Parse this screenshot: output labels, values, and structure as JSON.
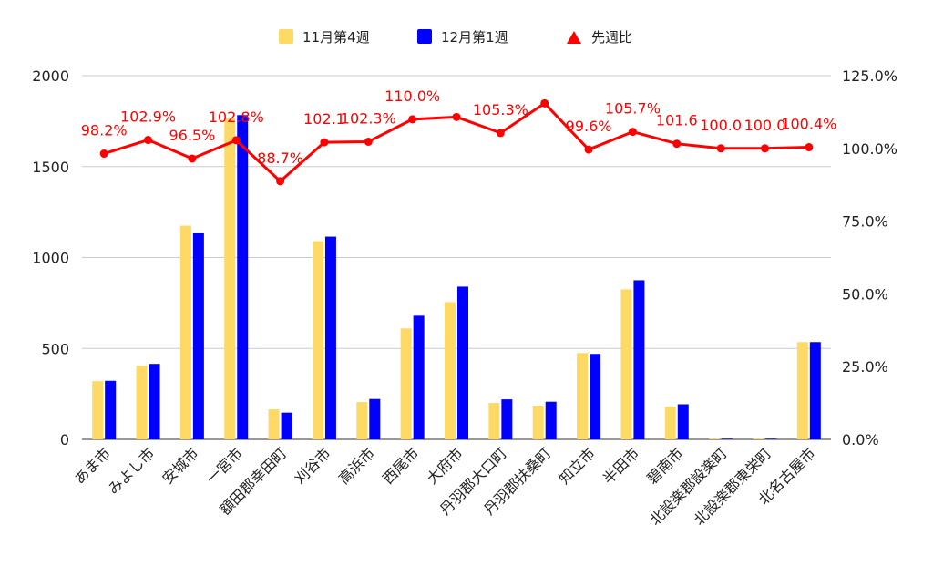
{
  "chart_data": {
    "type": "bar",
    "categories": [
      "あま市",
      "みよし市",
      "安城市",
      "一宮市",
      "額田郡幸田町",
      "刈谷市",
      "高浜市",
      "西尾市",
      "大府市",
      "丹羽郡大口町",
      "丹羽郡扶桑町",
      "知立市",
      "半田市",
      "碧南市",
      "北設楽郡設楽町",
      "北設楽郡東栄町",
      "北名古屋市"
    ],
    "series": [
      {
        "name": "11月第4週",
        "color": "#ffd966",
        "type": "bar",
        "axis": "left",
        "values": [
          320,
          405,
          1175,
          1765,
          165,
          1090,
          205,
          610,
          755,
          200,
          185,
          475,
          825,
          180,
          5,
          5,
          535
        ]
      },
      {
        "name": "12月第1週",
        "color": "#0000ff",
        "type": "bar",
        "axis": "left",
        "values": [
          322,
          415,
          1133,
          1783,
          147,
          1115,
          222,
          680,
          840,
          220,
          207,
          470,
          875,
          193,
          4,
          4,
          535
        ]
      },
      {
        "name": "先週比",
        "color": "#ff0000",
        "type": "line",
        "axis": "right",
        "marker": "triangle",
        "values": [
          98.2,
          102.9,
          96.5,
          102.8,
          88.7,
          102.1,
          102.3,
          110.0,
          110.8,
          105.3,
          115.5,
          99.6,
          105.7,
          101.6,
          100.0,
          100.0,
          100.4
        ]
      }
    ],
    "data_labels": [
      "98.2%",
      "102.9%",
      "96.5%",
      "102.8%",
      "88.7%",
      "102.1",
      "102.3%",
      "110.0%",
      "",
      "105.3%",
      "",
      "99.6%",
      "105.7%",
      "101.6",
      "100.0",
      "100.0",
      "100.4%"
    ],
    "y_left": {
      "min": 0,
      "max": 2000,
      "ticks": [
        "0",
        "500",
        "1000",
        "1500",
        "2000"
      ]
    },
    "y_right": {
      "min": 0,
      "max": 125,
      "ticks": [
        "0.0%",
        "25.0%",
        "50.0%",
        "75.0%",
        "100.0%",
        "125.0%"
      ]
    },
    "legend_position": "top",
    "grid": true
  }
}
